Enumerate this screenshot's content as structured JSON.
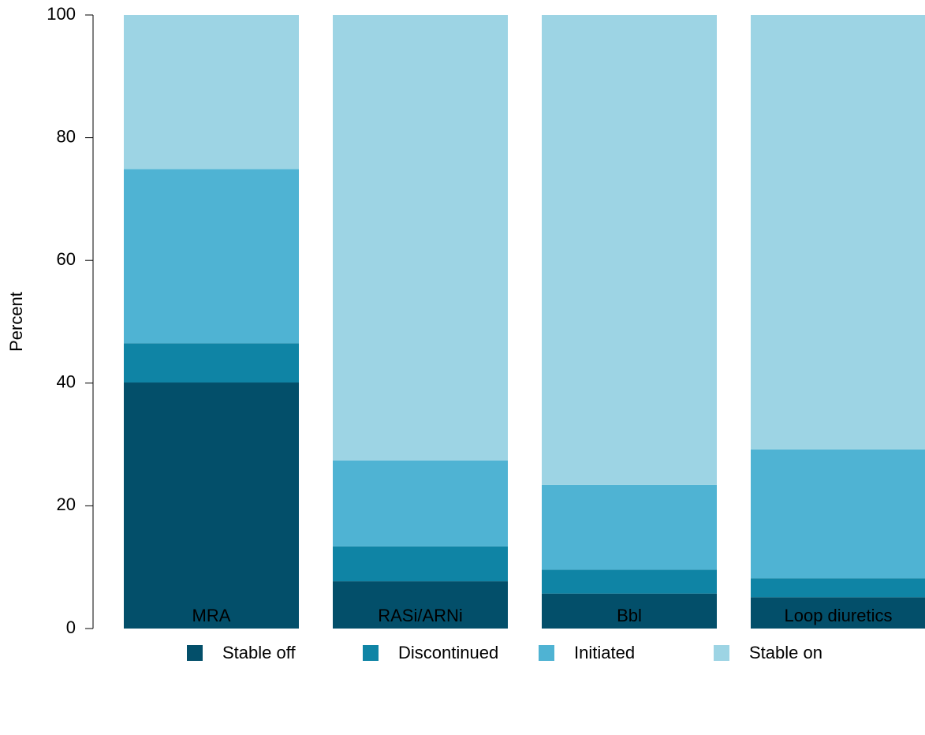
{
  "chart_data": {
    "type": "stacked_bar",
    "y_label": "Percent",
    "categories": [
      "MRA",
      "RASi/ARNi",
      "Bbl",
      "Loop diuretics"
    ],
    "series": [
      {
        "name": "Stable off",
        "color": "#034f6a",
        "values": [
          40.1,
          7.7,
          5.7,
          5.1
        ]
      },
      {
        "name": "Discontinued",
        "color": "#0f84a5",
        "values": [
          6.4,
          5.7,
          3.9,
          3.1
        ]
      },
      {
        "name": "Initiated",
        "color": "#4fb3d3",
        "values": [
          28.4,
          14.0,
          13.8,
          21.0
        ]
      },
      {
        "name": "Stable on",
        "color": "#9dd4e4",
        "values": [
          25.1,
          72.6,
          76.6,
          70.8
        ]
      }
    ],
    "ylim": [
      0,
      100
    ],
    "yticks": [
      0,
      20,
      40,
      60,
      80,
      100
    ]
  }
}
